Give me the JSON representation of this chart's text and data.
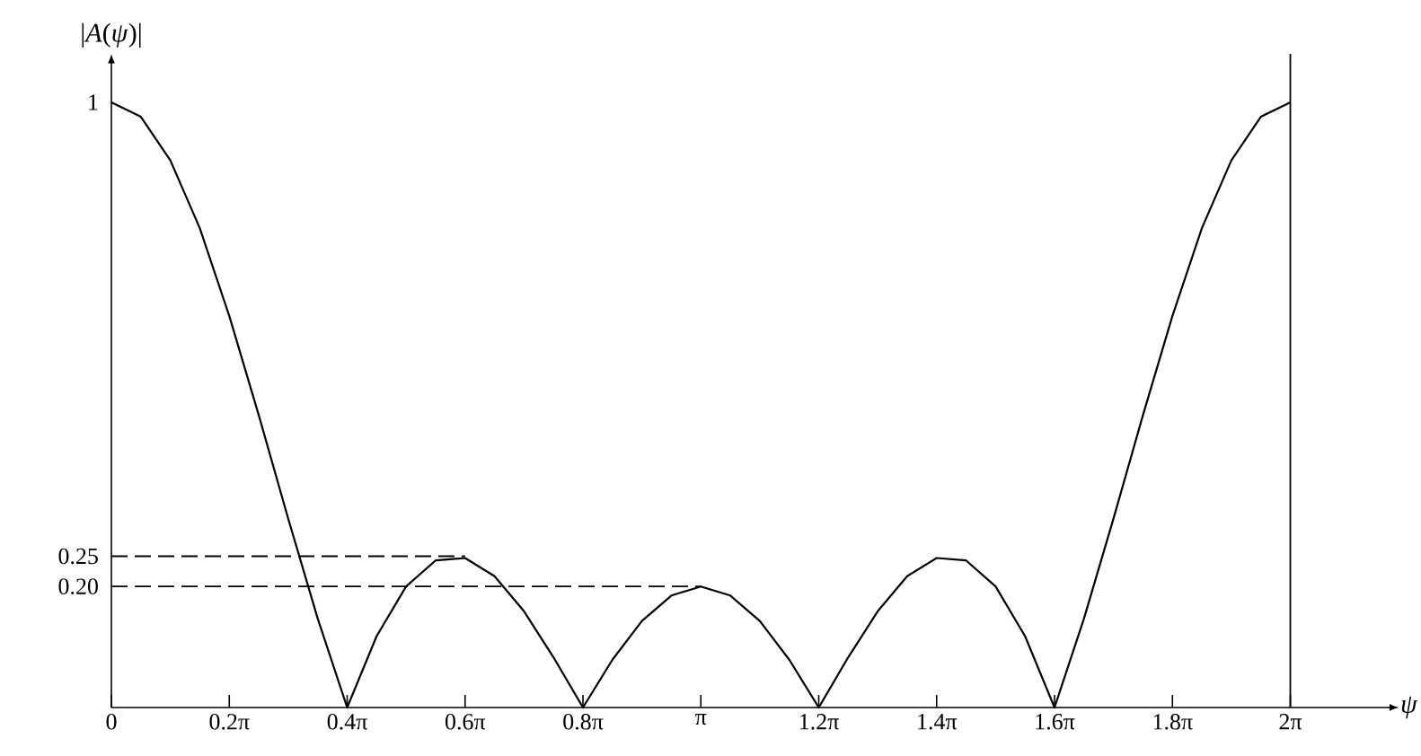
{
  "chart_data": {
    "type": "line",
    "xlabel": "*ψ*",
    "ylabel": "|*A*(*ψ*)|",
    "x": [
      0,
      0.1571,
      0.3142,
      0.4712,
      0.6283,
      0.7854,
      0.9425,
      1.0996,
      1.2566,
      1.4137,
      1.5708,
      1.7279,
      1.885,
      2.042,
      2.1991,
      2.3562,
      2.5133,
      2.6704,
      2.8274,
      2.9845,
      3.1416,
      3.2987,
      3.4558,
      3.6128,
      3.7699,
      3.927,
      4.0841,
      4.2412,
      4.3982,
      4.5553,
      4.7124,
      4.8695,
      5.0265,
      5.1836,
      5.3407,
      5.4978,
      5.6549,
      5.8119,
      5.969,
      6.1261,
      6.2832
    ],
    "series": [
      {
        "color": "#000000",
        "values": [
          1,
          0.976,
          0.904,
          0.792,
          0.647,
          0.483,
          0.312,
          0.147,
          0,
          0.118,
          0.2,
          0.243,
          0.247,
          0.217,
          0.159,
          0.083,
          0,
          0.079,
          0.143,
          0.185,
          0.2,
          0.185,
          0.143,
          0.079,
          0,
          0.083,
          0.159,
          0.217,
          0.247,
          0.243,
          0.2,
          0.118,
          0,
          0.147,
          0.312,
          0.483,
          0.647,
          0.792,
          0.904,
          0.976,
          1
        ]
      }
    ],
    "xlim": [
      0,
      6.817
    ],
    "ylim": [
      0,
      1.08
    ],
    "xticks": [
      0,
      {
        "value": 0.6283,
        "label": "0.2π"
      },
      {
        "value": 1.2566,
        "label": "0.4π"
      },
      {
        "value": 1.885,
        "label": "0.6π"
      },
      {
        "value": 2.5133,
        "label": "0.8π"
      },
      {
        "value": 3.1416,
        "label": "π"
      },
      {
        "value": 3.7699,
        "label": "1.2π"
      },
      {
        "value": 4.3982,
        "label": "1.4π"
      },
      {
        "value": 5.0265,
        "label": "1.6π"
      },
      {
        "value": 5.6549,
        "label": "1.8π"
      },
      {
        "value": 6.2832,
        "label": "2π"
      }
    ],
    "yticks": [
      {
        "value": 0.2,
        "label": "0.20"
      },
      {
        "value": 0.25,
        "label": "0.25"
      },
      1
    ],
    "ref_lines": [
      {
        "axis": "y",
        "value": 0.25,
        "line_style": "dashed",
        "color": "#000000"
      },
      {
        "axis": "y",
        "value": 0.2,
        "line_style": "dashed",
        "color": "#000000"
      },
      {
        "axis": "x",
        "value": 6.2832,
        "line_style": "solid",
        "color": "#000000"
      }
    ],
    "marker": "none",
    "line_style": "solid"
  }
}
